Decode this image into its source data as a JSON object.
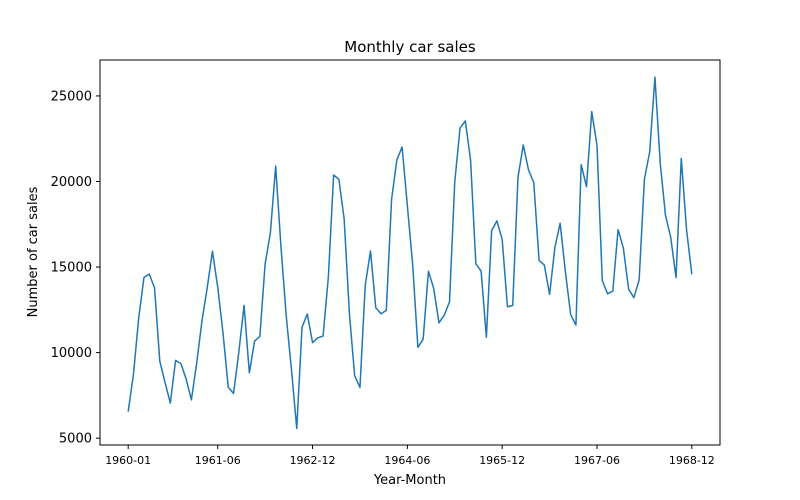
{
  "chart_data": {
    "type": "line",
    "title": "Monthly car sales",
    "xlabel": "Year-Month",
    "ylabel": "Number of car sales",
    "ylim": [
      4600,
      27100
    ],
    "grid": false,
    "x_ticks": [
      "1960-01",
      "1961-06",
      "1962-12",
      "1964-06",
      "1965-12",
      "1967-06",
      "1968-12"
    ],
    "y_ticks": [
      5000,
      10000,
      15000,
      20000,
      25000
    ],
    "series": [
      {
        "color": "#1f77b4",
        "x_start": "1960-01",
        "x_end": "1968-12",
        "values": [
          6550,
          8728,
          12026,
          14395,
          14587,
          13791,
          9498,
          8251,
          7049,
          9545,
          9364,
          8456,
          7237,
          9374,
          11837,
          13784,
          15926,
          13821,
          11143,
          7975,
          7610,
          10015,
          12759,
          8816,
          10677,
          10947,
          15200,
          17010,
          20900,
          16205,
          12143,
          8997,
          5568,
          11474,
          12256,
          10583,
          10862,
          10965,
          14405,
          20379,
          20128,
          17816,
          12268,
          8642,
          7962,
          13932,
          15936,
          12628,
          12267,
          12470,
          18944,
          21259,
          22015,
          18581,
          15175,
          10306,
          10792,
          14752,
          13754,
          11738,
          12181,
          12965,
          19990,
          23125,
          23541,
          21247,
          15189,
          14767,
          10895,
          17130,
          17697,
          16611,
          12674,
          12760,
          20249,
          22135,
          20677,
          19933,
          15388,
          15113,
          13401,
          16135,
          17562,
          14720,
          12225,
          11608,
          20985,
          19692,
          24081,
          22114,
          14220,
          13434,
          13598,
          17187,
          16119,
          13713,
          13210,
          14251,
          20139,
          21725,
          26099,
          21084,
          18024,
          16722,
          14385,
          21342,
          17180,
          14577
        ]
      }
    ]
  }
}
